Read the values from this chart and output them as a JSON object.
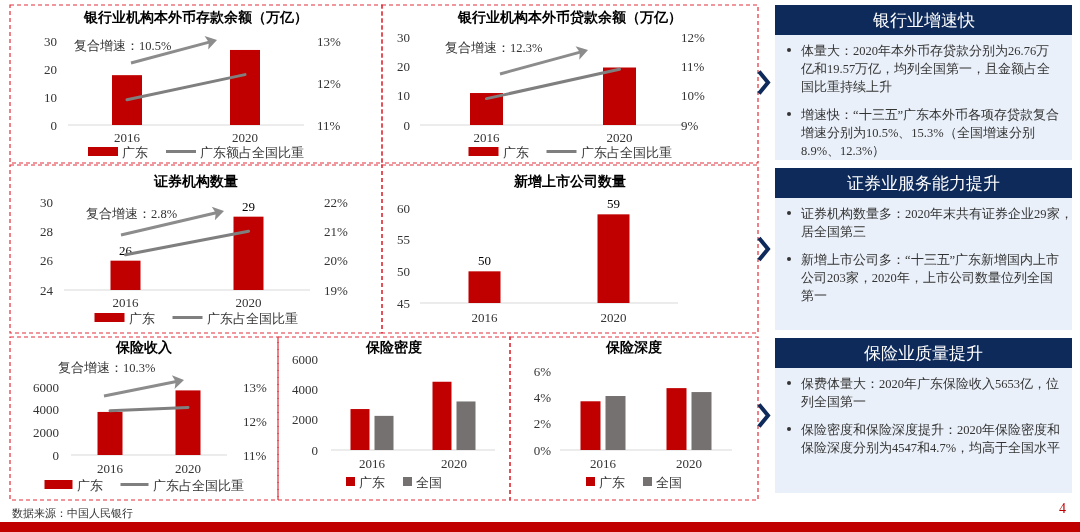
{
  "chart_data": [
    {
      "type": "bar",
      "title": "银行业机构本外币存款余额（万亿）",
      "categories": [
        "2016",
        "2020"
      ],
      "series": [
        {
          "name": "广东",
          "type": "bar",
          "color": "#c00000",
          "values": [
            17.8,
            26.8
          ]
        },
        {
          "name": "广东额占全国比重",
          "type": "line",
          "axis": "y2",
          "color": "#7f7f7f",
          "values": [
            11.6,
            12.2
          ]
        }
      ],
      "ylim": [
        0,
        30
      ],
      "yticks": [
        0,
        10,
        20,
        30
      ],
      "y2lim": [
        11,
        13
      ],
      "y2ticks": [
        {
          "value": 11,
          "label": "11%"
        },
        {
          "value": 12,
          "label": "12%"
        },
        {
          "value": 13,
          "label": "13%"
        }
      ],
      "legend": "bottom",
      "annotations": [
        "复合增速：10.5%"
      ]
    },
    {
      "type": "bar",
      "title": "银行业机构本外币贷款余额（万亿）",
      "categories": [
        "2016",
        "2020"
      ],
      "series": [
        {
          "name": "广东",
          "type": "bar",
          "color": "#c00000",
          "values": [
            10.9,
            19.6
          ]
        },
        {
          "name": "广东占全国比重",
          "type": "line",
          "axis": "y2",
          "color": "#7f7f7f",
          "values": [
            9.9,
            10.9
          ]
        }
      ],
      "ylim": [
        0,
        30
      ],
      "yticks": [
        0,
        10,
        20,
        30
      ],
      "y2lim": [
        9,
        12
      ],
      "y2ticks": [
        {
          "value": 9,
          "label": "9%"
        },
        {
          "value": 10,
          "label": "10%"
        },
        {
          "value": 11,
          "label": "11%"
        },
        {
          "value": 12,
          "label": "12%"
        }
      ],
      "legend": "bottom",
      "annotations": [
        "复合增速：12.3%"
      ]
    },
    {
      "type": "bar",
      "title": "证券机构数量",
      "categories": [
        "2016",
        "2020"
      ],
      "series": [
        {
          "name": "广东",
          "type": "bar",
          "color": "#c00000",
          "values": [
            26,
            29
          ],
          "value_labels": [
            "26",
            "29"
          ]
        },
        {
          "name": "广东占全国比重",
          "type": "line",
          "axis": "y2",
          "color": "#7f7f7f",
          "values": [
            20.2,
            21.0
          ]
        }
      ],
      "ylim": [
        24,
        30
      ],
      "yticks": [
        24,
        26,
        28,
        30
      ],
      "y2lim": [
        19,
        22
      ],
      "y2ticks": [
        {
          "value": 19,
          "label": "19%"
        },
        {
          "value": 20,
          "label": "20%"
        },
        {
          "value": 21,
          "label": "21%"
        },
        {
          "value": 22,
          "label": "22%"
        }
      ],
      "legend": "bottom",
      "annotations": [
        "复合增速：2.8%"
      ]
    },
    {
      "type": "bar",
      "title": "新增上市公司数量",
      "categories": [
        "2016",
        "2020"
      ],
      "values": [
        50,
        59
      ],
      "color": "#c00000",
      "ylim": [
        45,
        60
      ],
      "yticks": [
        45,
        50,
        55,
        60
      ],
      "data_labels": true
    },
    {
      "type": "bar",
      "title": "保险收入",
      "categories": [
        "2016",
        "2020"
      ],
      "series": [
        {
          "name": "广东",
          "type": "bar",
          "color": "#c00000",
          "values": [
            3800,
            5700
          ]
        },
        {
          "name": "广东占全国比重",
          "type": "line",
          "axis": "y2",
          "color": "#7f7f7f",
          "values": [
            12.3,
            12.4
          ]
        }
      ],
      "ylim": [
        0,
        6000
      ],
      "yticks": [
        0,
        2000,
        4000,
        6000
      ],
      "y2lim": [
        11,
        13
      ],
      "y2ticks": [
        {
          "value": 11,
          "label": "11%"
        },
        {
          "value": 12,
          "label": "12%"
        },
        {
          "value": 13,
          "label": "13%"
        }
      ],
      "legend": "bottom",
      "annotations": [
        "复合增速：10.3%"
      ]
    },
    {
      "type": "bar",
      "title": "保险密度",
      "categories": [
        "2016",
        "2020"
      ],
      "series": [
        {
          "name": "广东",
          "color": "#c00000",
          "values": [
            2700,
            4500
          ]
        },
        {
          "name": "全国",
          "color": "#767171",
          "values": [
            2250,
            3200
          ]
        }
      ],
      "ylim": [
        0,
        6000
      ],
      "yticks": [
        0,
        2000,
        4000,
        6000
      ],
      "legend": "bottom"
    },
    {
      "type": "bar",
      "title": "保险深度",
      "categories": [
        "2016",
        "2020"
      ],
      "series": [
        {
          "name": "广东",
          "color": "#c00000",
          "values": [
            3.7,
            4.7
          ]
        },
        {
          "name": "全国",
          "color": "#767171",
          "values": [
            4.1,
            4.4
          ]
        }
      ],
      "ylim": [
        0,
        6
      ],
      "yticks": [
        {
          "value": 0,
          "label": "0%"
        },
        {
          "value": 2,
          "label": "2%"
        },
        {
          "value": 4,
          "label": "4%"
        },
        {
          "value": 6,
          "label": "6%"
        }
      ],
      "legend": "bottom"
    },
    {
      "type": "other",
      "title": "银行业增速快",
      "annotations": [
        "体量大：2020年本外币存贷款分别为26.76万亿和19.57万亿，均列全国第一，且金额占全国比重持续上升",
        "增速快：“十三五”广东本外币各项存贷款复合增速分别为10.5%、15.3%（全国增速分别8.9%、12.3%）"
      ]
    },
    {
      "type": "other",
      "title": "证券业服务能力提升",
      "annotations": [
        "证券机构数量多：2020年末共有证券企业29家，居全国第三",
        "新增上市公司多：“十三五”广东新增国内上市公司203家，2020年，上市公司数量位列全国第一"
      ]
    },
    {
      "type": "other",
      "title": "保险业质量提升",
      "annotations": [
        "保费体量大：2020年广东保险收入5653亿，位列全国第一",
        "保险密度和保险深度提升：2020年保险密度和保险深度分别为4547和4.7%，均高于全国水平"
      ]
    },
    {
      "type": "other",
      "annotations": [
        "数据来源：中国人民银行",
        "4"
      ]
    }
  ]
}
